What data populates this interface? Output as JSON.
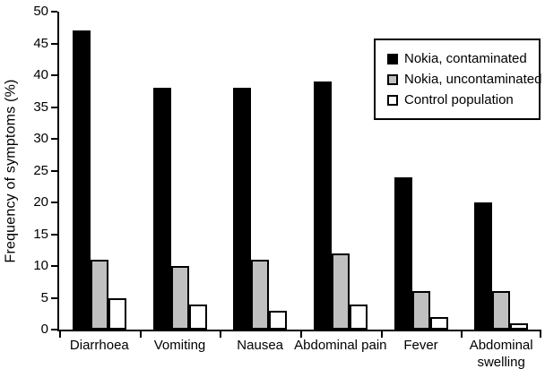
{
  "figure": {
    "background": "#ffffff",
    "axis_color": "#000000",
    "text_color": "#000000"
  },
  "chart_data": {
    "type": "bar",
    "title": "",
    "xlabel": "",
    "ylabel": "Frequency of symptoms (%)",
    "ylim": [
      0,
      50
    ],
    "yticks": [
      0,
      5,
      10,
      15,
      20,
      25,
      30,
      35,
      40,
      45,
      50
    ],
    "grid": false,
    "legend_position": "upper-right",
    "categories": [
      "Diarrhoea",
      "Vomiting",
      "Nausea",
      "Abdominal pain",
      "Fever",
      "Abdominal\nswelling"
    ],
    "series": [
      {
        "name": "Nokia, contaminated",
        "color": "#000000",
        "border": "#000000",
        "values": [
          47,
          38,
          38,
          39,
          24,
          20
        ]
      },
      {
        "name": "Nokia, uncontaminated",
        "color": "#c0c0c0",
        "border": "#000000",
        "values": [
          11,
          10,
          11,
          12,
          6,
          6
        ]
      },
      {
        "name": "Control population",
        "color": "#ffffff",
        "border": "#000000",
        "values": [
          5,
          4,
          3,
          4,
          2,
          1
        ]
      }
    ]
  }
}
